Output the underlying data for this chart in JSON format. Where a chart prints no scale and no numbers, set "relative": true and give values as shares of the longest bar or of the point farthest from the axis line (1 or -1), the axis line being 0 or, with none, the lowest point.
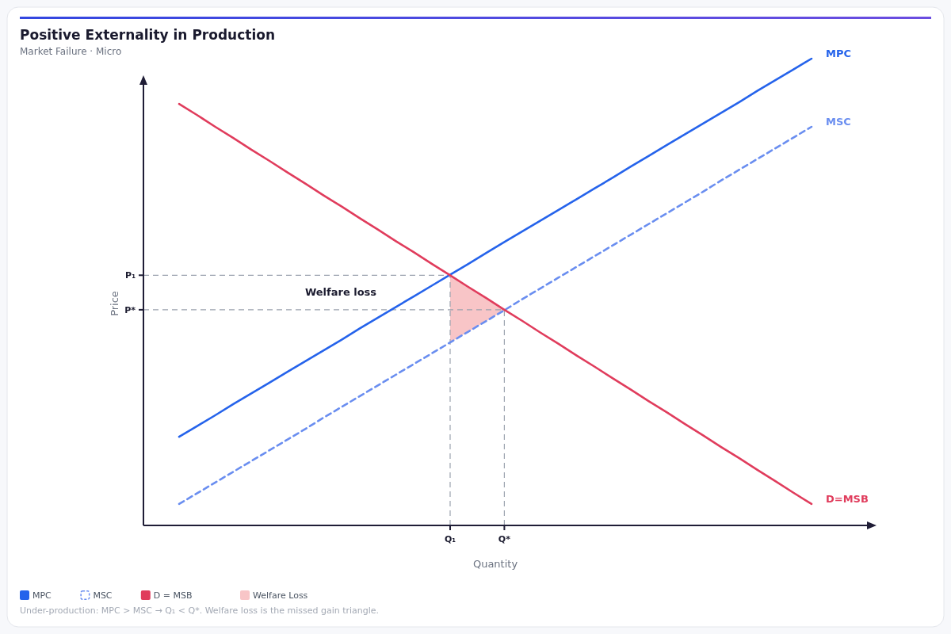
{
  "chart_data": {
    "type": "line",
    "title": "Positive Externality in Production",
    "subtitle": "Market Failure · Micro",
    "xlabel": "Quantity",
    "ylabel": "Price",
    "relative": true,
    "categories": [
      null,
      null,
      null,
      null,
      null,
      null,
      null,
      null,
      null,
      null,
      null,
      null,
      null,
      null,
      null,
      "Q₁",
      null,
      null,
      "Q*",
      null,
      null,
      null,
      null,
      null,
      null,
      null,
      null,
      null,
      null,
      null,
      null,
      null,
      null,
      null,
      null,
      null
    ],
    "series": [
      {
        "name": "MPC",
        "color": "#2563eb",
        "values": [
          0.19,
          0.213,
          0.236,
          0.26,
          0.283,
          0.306,
          0.329,
          0.352,
          0.375,
          0.398,
          0.422,
          0.445,
          0.468,
          0.491,
          0.514,
          0.537,
          0.56,
          0.584,
          0.607,
          0.63,
          0.653,
          0.676,
          0.699,
          0.722,
          0.745,
          0.769,
          0.792,
          0.815,
          0.838,
          0.861,
          0.884,
          0.907,
          0.931,
          0.954,
          0.977,
          1.0
        ]
      },
      {
        "name": "MSC",
        "color": "#6a8ef0",
        "line_style": "dashed",
        "values": [
          0.046,
          0.069,
          0.092,
          0.115,
          0.138,
          0.161,
          0.184,
          0.207,
          0.231,
          0.254,
          0.277,
          0.3,
          0.323,
          0.346,
          0.369,
          0.392,
          0.415,
          0.438,
          0.461,
          0.485,
          0.508,
          0.531,
          0.554,
          0.577,
          0.6,
          0.623,
          0.646,
          0.669,
          0.692,
          0.715,
          0.739,
          0.762,
          0.785,
          0.808,
          0.831,
          0.854
        ]
      },
      {
        "name": "D = MSB",
        "color": "#e03c5c",
        "values": [
          0.903,
          0.879,
          0.854,
          0.83,
          0.805,
          0.781,
          0.756,
          0.732,
          0.707,
          0.683,
          0.658,
          0.634,
          0.609,
          0.585,
          0.56,
          0.536,
          0.511,
          0.487,
          0.462,
          0.438,
          0.413,
          0.389,
          0.364,
          0.34,
          0.315,
          0.291,
          0.266,
          0.242,
          0.217,
          0.193,
          0.168,
          0.144,
          0.119,
          0.095,
          0.07,
          0.046
        ]
      },
      {
        "name": "Welfare Loss",
        "type": "area",
        "color": "#f8c5c7",
        "values": [
          null,
          null,
          null,
          null,
          null,
          null,
          null,
          null,
          null,
          null,
          null,
          null,
          null,
          null,
          null,
          null,
          null,
          null,
          null,
          null,
          null,
          null,
          null,
          null,
          null,
          null,
          null,
          null,
          null,
          null,
          null,
          null,
          null,
          null,
          null,
          null
        ],
        "upper": [
          null,
          null,
          null,
          null,
          null,
          null,
          null,
          null,
          null,
          null,
          null,
          null,
          null,
          null,
          null,
          0.536,
          0.511,
          0.487,
          0.462,
          null,
          null,
          null,
          null,
          null,
          null,
          null,
          null,
          null,
          null,
          null,
          null,
          null,
          null,
          null,
          null,
          null
        ],
        "lower": [
          null,
          null,
          null,
          null,
          null,
          null,
          null,
          null,
          null,
          null,
          null,
          null,
          null,
          null,
          null,
          0.392,
          0.415,
          0.438,
          0.461,
          null,
          null,
          null,
          null,
          null,
          null,
          null,
          null,
          null,
          null,
          null,
          null,
          null,
          null,
          null,
          null,
          null
        ]
      }
    ],
    "ref_lines": [
      {
        "axis": "y",
        "value": 0.536,
        "label": "P₁",
        "color": "#9ca3af",
        "line_style": "dashed"
      },
      {
        "axis": "y",
        "value": 0.462,
        "label": "P*",
        "color": "#9ca3af",
        "line_style": "dashed"
      },
      {
        "axis": "x",
        "value": "Q₁",
        "color": "#9ca3af",
        "line_style": "dashed"
      },
      {
        "axis": "x",
        "value": "Q*",
        "color": "#9ca3af",
        "line_style": "dashed"
      }
    ],
    "annotations": [
      "MPC",
      "MSC",
      "D=MSB",
      "Welfare loss",
      "Under-production: MPC > MSC → Q₁ < Q*. Welfare loss is the missed gain triangle."
    ],
    "legend": "bottom left"
  }
}
